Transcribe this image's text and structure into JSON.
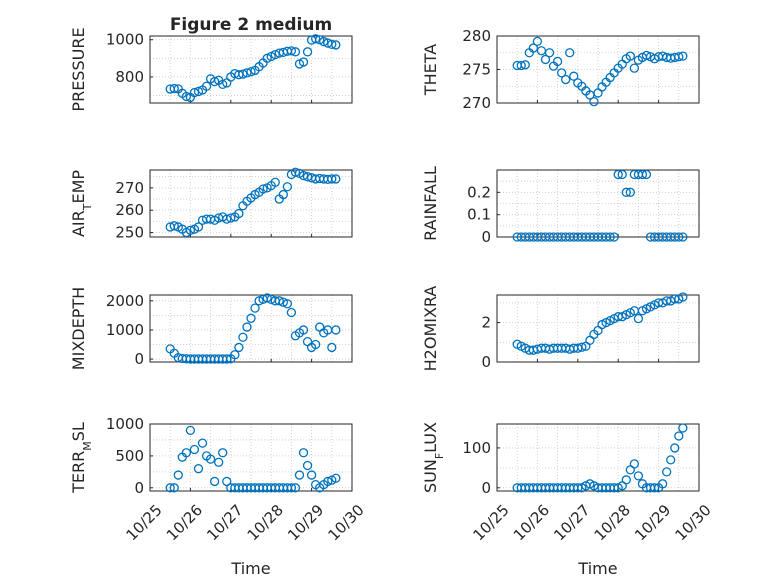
{
  "figure": {
    "title": "Figure 2 medium"
  },
  "chart_data": [
    {
      "type": "scatter",
      "panel": 1,
      "ylabel": "PRESSURE",
      "ylim": [
        660,
        1020
      ],
      "yticks": [
        800,
        1000
      ],
      "xlim": [
        0,
        5
      ],
      "xticks": [
        0,
        1,
        2,
        3,
        4,
        5
      ],
      "grid": true,
      "x": [
        0.5,
        0.6,
        0.7,
        0.8,
        0.9,
        1.0,
        1.1,
        1.2,
        1.3,
        1.4,
        1.5,
        1.6,
        1.7,
        1.8,
        1.9,
        2.0,
        2.1,
        2.2,
        2.3,
        2.4,
        2.5,
        2.6,
        2.7,
        2.8,
        2.9,
        3.0,
        3.1,
        3.2,
        3.3,
        3.4,
        3.5,
        3.6,
        3.7,
        3.8,
        3.9,
        4.0,
        4.1,
        4.2,
        4.3,
        4.4,
        4.5,
        4.6
      ],
      "y": [
        735,
        738,
        736,
        712,
        695,
        690,
        716,
        722,
        730,
        750,
        790,
        775,
        782,
        760,
        768,
        800,
        818,
        812,
        815,
        822,
        828,
        835,
        855,
        875,
        900,
        910,
        920,
        928,
        932,
        938,
        940,
        935,
        870,
        880,
        935,
        998,
        1005,
        1000,
        990,
        982,
        975,
        972
      ]
    },
    {
      "type": "scatter",
      "panel": 2,
      "ylabel": "THETA",
      "ylim": [
        270,
        280
      ],
      "yticks": [
        270,
        275,
        280
      ],
      "xlim": [
        0,
        5
      ],
      "xticks": [
        0,
        1,
        2,
        3,
        4,
        5
      ],
      "grid": true,
      "x": [
        0.5,
        0.6,
        0.7,
        0.8,
        0.9,
        1.0,
        1.1,
        1.2,
        1.3,
        1.4,
        1.5,
        1.6,
        1.7,
        1.8,
        1.9,
        2.0,
        2.1,
        2.2,
        2.3,
        2.4,
        2.5,
        2.6,
        2.7,
        2.8,
        2.9,
        3.0,
        3.1,
        3.2,
        3.3,
        3.4,
        3.5,
        3.6,
        3.7,
        3.8,
        3.9,
        4.0,
        4.1,
        4.2,
        4.3,
        4.4,
        4.5,
        4.6
      ],
      "y": [
        275.6,
        275.6,
        275.7,
        277.5,
        278.2,
        279.2,
        277.8,
        276.5,
        277.5,
        275.5,
        276.2,
        274.5,
        273.5,
        277.5,
        274.0,
        273.0,
        272.5,
        271.8,
        271.2,
        270.2,
        271.5,
        272.4,
        273.1,
        273.8,
        274.5,
        275.2,
        275.8,
        276.6,
        277.0,
        275.2,
        276.4,
        276.8,
        277.1,
        276.9,
        276.6,
        276.9,
        277.0,
        276.8,
        276.7,
        276.8,
        276.9,
        277.0
      ]
    },
    {
      "type": "scatter",
      "panel": 3,
      "ylabel": "AIR_TEMP",
      "ylim": [
        248,
        278
      ],
      "yticks": [
        250,
        260,
        270
      ],
      "xlim": [
        0,
        5
      ],
      "xticks": [
        0,
        1,
        2,
        3,
        4,
        5
      ],
      "grid": true,
      "x": [
        0.5,
        0.6,
        0.7,
        0.8,
        0.9,
        1.0,
        1.1,
        1.2,
        1.3,
        1.4,
        1.5,
        1.6,
        1.7,
        1.8,
        1.9,
        2.0,
        2.1,
        2.2,
        2.3,
        2.4,
        2.5,
        2.6,
        2.7,
        2.8,
        2.9,
        3.0,
        3.1,
        3.2,
        3.3,
        3.4,
        3.5,
        3.6,
        3.7,
        3.8,
        3.9,
        4.0,
        4.1,
        4.2,
        4.3,
        4.4,
        4.5,
        4.6
      ],
      "y": [
        252.5,
        253.0,
        252.5,
        251.5,
        250.0,
        251.0,
        251.5,
        252.5,
        255.5,
        256.0,
        256.0,
        255.5,
        256.5,
        257.0,
        256.0,
        256.5,
        257.0,
        258.5,
        262.0,
        264.0,
        265.5,
        267.0,
        268.0,
        269.5,
        270.0,
        271.0,
        272.5,
        265.0,
        267.0,
        270.5,
        276.0,
        277.0,
        276.5,
        275.5,
        275.0,
        274.5,
        274.0,
        274.2,
        274.0,
        273.8,
        274.0,
        274.0
      ]
    },
    {
      "type": "scatter",
      "panel": 4,
      "ylabel": "RAINFALL",
      "ylim": [
        0,
        0.3
      ],
      "yticks": [
        0,
        0.1,
        0.2
      ],
      "xlim": [
        0,
        5
      ],
      "xticks": [
        0,
        1,
        2,
        3,
        4,
        5
      ],
      "grid": true,
      "x": [
        0.5,
        0.6,
        0.7,
        0.8,
        0.9,
        1.0,
        1.1,
        1.2,
        1.3,
        1.4,
        1.5,
        1.6,
        1.7,
        1.8,
        1.9,
        2.0,
        2.1,
        2.2,
        2.3,
        2.4,
        2.5,
        2.6,
        2.7,
        2.8,
        2.9,
        3.0,
        3.1,
        3.2,
        3.3,
        3.4,
        3.5,
        3.6,
        3.7,
        3.8,
        3.9,
        4.0,
        4.1,
        4.2,
        4.3,
        4.4,
        4.5,
        4.6
      ],
      "y": [
        0,
        0,
        0,
        0,
        0,
        0,
        0,
        0,
        0,
        0,
        0,
        0,
        0,
        0,
        0,
        0,
        0,
        0,
        0,
        0,
        0,
        0,
        0,
        0,
        0,
        0.28,
        0.28,
        0.2,
        0.2,
        0.28,
        0.28,
        0.28,
        0.28,
        0,
        0,
        0,
        0,
        0,
        0,
        0,
        0,
        0
      ]
    },
    {
      "type": "scatter",
      "panel": 5,
      "ylabel": "MIXDEPTH",
      "ylim": [
        -100,
        2200
      ],
      "yticks": [
        0,
        1000,
        2000
      ],
      "xlim": [
        0,
        5
      ],
      "xticks": [
        0,
        1,
        2,
        3,
        4,
        5
      ],
      "grid": true,
      "x": [
        0.5,
        0.6,
        0.7,
        0.8,
        0.9,
        1.0,
        1.1,
        1.2,
        1.3,
        1.4,
        1.5,
        1.6,
        1.7,
        1.8,
        1.9,
        2.0,
        2.1,
        2.2,
        2.3,
        2.4,
        2.5,
        2.6,
        2.7,
        2.8,
        2.9,
        3.0,
        3.1,
        3.2,
        3.3,
        3.4,
        3.5,
        3.6,
        3.7,
        3.8,
        3.9,
        4.0,
        4.1,
        4.2,
        4.3,
        4.4,
        4.5,
        4.6
      ],
      "y": [
        350,
        200,
        50,
        20,
        10,
        5,
        5,
        5,
        5,
        5,
        5,
        5,
        5,
        5,
        5,
        10,
        150,
        400,
        750,
        1100,
        1400,
        1750,
        2000,
        2050,
        2100,
        2050,
        2000,
        2000,
        1950,
        1900,
        1600,
        800,
        900,
        1000,
        600,
        400,
        500,
        1100,
        900,
        1000,
        400,
        1000
      ]
    },
    {
      "type": "scatter",
      "panel": 6,
      "ylabel": "H2OMIXRA",
      "ylim": [
        0,
        3.4
      ],
      "yticks": [
        0,
        2
      ],
      "xlim": [
        0,
        5
      ],
      "xticks": [
        0,
        1,
        2,
        3,
        4,
        5
      ],
      "grid": true,
      "x": [
        0.5,
        0.6,
        0.7,
        0.8,
        0.9,
        1.0,
        1.1,
        1.2,
        1.3,
        1.4,
        1.5,
        1.6,
        1.7,
        1.8,
        1.9,
        2.0,
        2.1,
        2.2,
        2.3,
        2.4,
        2.5,
        2.6,
        2.7,
        2.8,
        2.9,
        3.0,
        3.1,
        3.2,
        3.3,
        3.4,
        3.5,
        3.6,
        3.7,
        3.8,
        3.9,
        4.0,
        4.1,
        4.2,
        4.3,
        4.4,
        4.5,
        4.6
      ],
      "y": [
        0.9,
        0.8,
        0.7,
        0.6,
        0.6,
        0.65,
        0.7,
        0.7,
        0.65,
        0.7,
        0.7,
        0.7,
        0.7,
        0.65,
        0.7,
        0.7,
        0.75,
        0.8,
        1.1,
        1.4,
        1.6,
        1.9,
        2.0,
        2.1,
        2.2,
        2.3,
        2.3,
        2.4,
        2.5,
        2.6,
        2.2,
        2.6,
        2.7,
        2.8,
        2.9,
        3.0,
        3.0,
        3.1,
        3.1,
        3.2,
        3.2,
        3.3
      ]
    },
    {
      "type": "scatter",
      "panel": 7,
      "ylabel": "TERR_MSL",
      "ylim": [
        -50,
        1000
      ],
      "yticks": [
        0,
        500,
        1000
      ],
      "xlim": [
        0,
        5
      ],
      "xticks": [
        0,
        1,
        2,
        3,
        4,
        5
      ],
      "xticklabels": [
        "10/25",
        "10/26",
        "10/27",
        "10/28",
        "10/29",
        "10/30"
      ],
      "xlabel": "Time",
      "grid": true,
      "x": [
        0.5,
        0.6,
        0.7,
        0.8,
        0.9,
        1.0,
        1.1,
        1.2,
        1.3,
        1.4,
        1.5,
        1.6,
        1.7,
        1.8,
        1.9,
        2.0,
        2.1,
        2.2,
        2.3,
        2.4,
        2.5,
        2.6,
        2.7,
        2.8,
        2.9,
        3.0,
        3.1,
        3.2,
        3.3,
        3.4,
        3.5,
        3.6,
        3.7,
        3.8,
        3.9,
        4.0,
        4.1,
        4.2,
        4.3,
        4.4,
        4.5,
        4.6
      ],
      "y": [
        0,
        0,
        200,
        480,
        550,
        900,
        600,
        300,
        700,
        500,
        450,
        100,
        400,
        550,
        100,
        0,
        0,
        0,
        0,
        0,
        0,
        0,
        0,
        0,
        0,
        0,
        0,
        0,
        0,
        0,
        0,
        0,
        200,
        550,
        350,
        200,
        50,
        0,
        50,
        100,
        120,
        150
      ]
    },
    {
      "type": "scatter",
      "panel": 8,
      "ylabel": "SUN_FLUX",
      "ylim": [
        -8,
        160
      ],
      "yticks": [
        0,
        100
      ],
      "xlim": [
        0,
        5
      ],
      "xticks": [
        0,
        1,
        2,
        3,
        4,
        5
      ],
      "xticklabels": [
        "10/25",
        "10/26",
        "10/27",
        "10/28",
        "10/29",
        "10/30"
      ],
      "xlabel": "Time",
      "grid": true,
      "x": [
        0.5,
        0.6,
        0.7,
        0.8,
        0.9,
        1.0,
        1.1,
        1.2,
        1.3,
        1.4,
        1.5,
        1.6,
        1.7,
        1.8,
        1.9,
        2.0,
        2.1,
        2.2,
        2.3,
        2.4,
        2.5,
        2.6,
        2.7,
        2.8,
        2.9,
        3.0,
        3.1,
        3.2,
        3.3,
        3.4,
        3.5,
        3.6,
        3.7,
        3.8,
        3.9,
        4.0,
        4.1,
        4.2,
        4.3,
        4.4,
        4.5,
        4.6
      ],
      "y": [
        0,
        0,
        0,
        0,
        0,
        0,
        0,
        0,
        0,
        0,
        0,
        0,
        0,
        0,
        0,
        0,
        0,
        5,
        10,
        5,
        0,
        0,
        0,
        0,
        0,
        0,
        5,
        20,
        45,
        60,
        30,
        10,
        0,
        0,
        0,
        0,
        10,
        40,
        70,
        100,
        130,
        150
      ]
    }
  ]
}
